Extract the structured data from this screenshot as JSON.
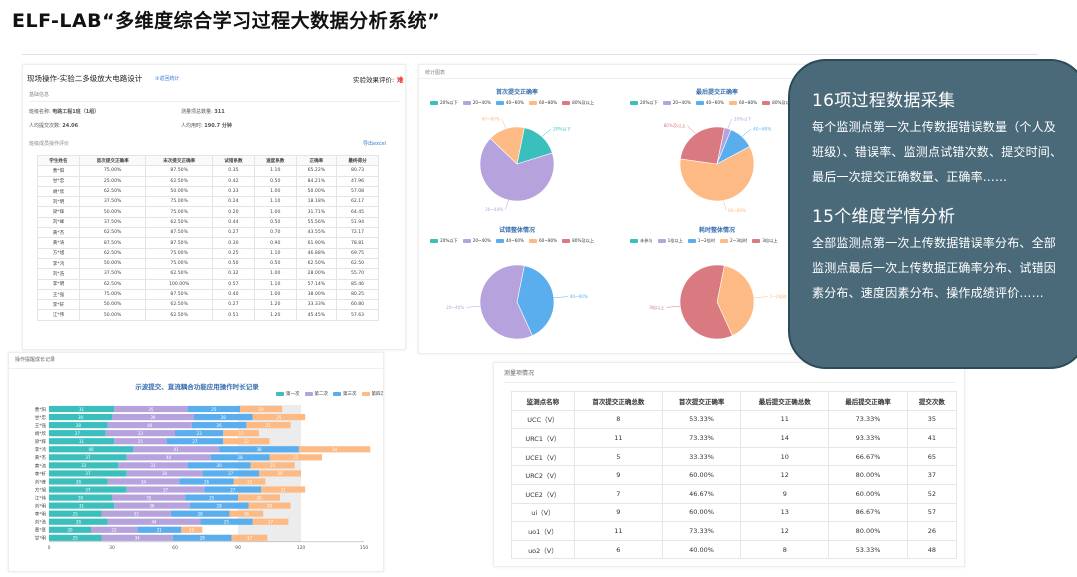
{
  "title": "ELF-LAB“多维度综合学习过程大数据分析系统”",
  "left_panel": {
    "header": "现场操作-实验二多级放大电路设计",
    "header_link": "③返回统计",
    "right_label": "实验效果评价:",
    "right_value": "难",
    "section_basic": "基础信息",
    "fields": [
      {
        "label": "班级名称:",
        "value": "电路工程1班（1组）"
      },
      {
        "label": "测量项总数量:",
        "value": "311"
      },
      {
        "label": "人均提交次数:",
        "value": "24.06"
      },
      {
        "label": "人均用时:",
        "value": "190.7 分钟"
      }
    ],
    "section_eval": "班级成员操作评价",
    "export": "导出excel",
    "columns": [
      "学生姓名",
      "首次提交正确率",
      "末次提交正确率",
      "试错系数",
      "速度系数",
      "正确率",
      "最终得分"
    ],
    "rows": [
      [
        "曹*阳",
        "75.00%",
        "87.50%",
        "0.35",
        "1.10",
        "65.22%",
        "80.73"
      ],
      [
        "甘*忠",
        "25.00%",
        "62.50%",
        "0.42",
        "0.50",
        "84.21%",
        "47.96"
      ],
      [
        "胡*欣",
        "62.50%",
        "50.00%",
        "0.33",
        "1.00",
        "50.00%",
        "57.08"
      ],
      [
        "刘*明",
        "37.50%",
        "75.00%",
        "0.24",
        "1.10",
        "18.18%",
        "62.17"
      ],
      [
        "梁*辉",
        "50.00%",
        "75.00%",
        "0.20",
        "1.00",
        "31.71%",
        "64.45"
      ],
      [
        "刘*峰",
        "37.50%",
        "62.50%",
        "0.44",
        "0.50",
        "55.56%",
        "51.94"
      ],
      [
        "黄*杰",
        "62.50%",
        "87.50%",
        "0.27",
        "0.70",
        "43.55%",
        "72.17"
      ],
      [
        "黄*涛",
        "87.50%",
        "87.50%",
        "0.30",
        "0.90",
        "61.90%",
        "78.81"
      ],
      [
        "方*旭",
        "62.50%",
        "75.00%",
        "0.25",
        "1.10",
        "46.88%",
        "69.75"
      ],
      [
        "李*鸿",
        "50.00%",
        "75.00%",
        "0.50",
        "0.50",
        "62.50%",
        "62.50"
      ],
      [
        "刘*浩",
        "37.50%",
        "62.50%",
        "0.32",
        "1.00",
        "28.00%",
        "55.70"
      ],
      [
        "李*明",
        "62.50%",
        "100.00%",
        "0.57",
        "1.10",
        "57.14%",
        "85.46"
      ],
      [
        "王*强",
        "75.00%",
        "87.50%",
        "0.40",
        "1.00",
        "38.00%",
        "80.25"
      ],
      [
        "李*轩",
        "50.00%",
        "62.50%",
        "0.27",
        "1.20",
        "33.33%",
        "60.80"
      ],
      [
        "江*伟",
        "50.00%",
        "62.50%",
        "0.51",
        "1.20",
        "45.45%",
        "57.63"
      ]
    ]
  },
  "pies_panel": {
    "header": "统计图表",
    "pies": [
      {
        "title": "首次提交正确率",
        "legend": [
          "20%以下",
          "20~40%",
          "40~60%",
          "60~80%",
          "80%及以上"
        ],
        "slices": [
          {
            "label": "20%以下",
            "value": 17
          },
          {
            "label": "20~40%",
            "value": 67
          },
          {
            "label": "40~60%",
            "value": 0
          },
          {
            "label": "60~80%",
            "value": 16
          }
        ],
        "labels": [
          "20%以下",
          "20~40%",
          "40~60%",
          "60~80%"
        ]
      },
      {
        "title": "最后提交正确率",
        "legend": [
          "20%以下",
          "20~40%",
          "40~60%",
          "60~80%",
          "80%及以上"
        ],
        "slices": [
          {
            "label": "20%以下",
            "value": 3
          },
          {
            "label": "40~60%",
            "value": 11
          },
          {
            "label": "60~80%",
            "value": 60
          },
          {
            "label": "80%及以上",
            "value": 26
          }
        ],
        "labels": [
          "20%以下",
          "40~60%",
          "60~80%",
          "80%及以上"
        ]
      },
      {
        "title": "试错整体情况",
        "legend": [
          "20%以下",
          "20~40%",
          "40~60%",
          "60~80%",
          "80%及以上"
        ],
        "slices": [
          {
            "label": "40~60%",
            "value": 40
          },
          {
            "label": "20~40%",
            "value": 60
          }
        ],
        "labels": [
          "40~60%",
          "20~40%"
        ]
      },
      {
        "title": "耗时整体情况",
        "legend": [
          "未参与",
          "1倍以上",
          "1~2倍时",
          "2~3倍时",
          "3倍以上"
        ],
        "slices": [
          {
            "label": "1~2倍时",
            "value": 40
          },
          {
            "label": "3倍以上",
            "value": 60
          }
        ],
        "labels": [
          "1~2倍时",
          "3倍以上"
        ]
      }
    ]
  },
  "bar_panel": {
    "header": "操作提醒成长记录",
    "chart_title": "示波提交、直流耦合功能应用操作时长记录",
    "legend": [
      "第一次",
      "第二次",
      "第三次",
      "第四次"
    ],
    "xticks": [
      "0",
      "30",
      "60",
      "90",
      "120",
      "150"
    ]
  },
  "measure_panel": {
    "header": "测量项情况",
    "columns": [
      "监测点名称",
      "首次提交正确总数",
      "首次提交正确率",
      "最后提交正确总数",
      "最后提交正确率",
      "提交次数"
    ],
    "rows": [
      [
        "UCC（V）",
        "8",
        "53.33%",
        "11",
        "73.33%",
        "35"
      ],
      [
        "URC1（V）",
        "11",
        "73.33%",
        "14",
        "93.33%",
        "41"
      ],
      [
        "UCE1（V）",
        "5",
        "33.33%",
        "10",
        "66.67%",
        "65"
      ],
      [
        "URC2（V）",
        "9",
        "60.00%",
        "12",
        "80.00%",
        "37"
      ],
      [
        "UCE2（V）",
        "7",
        "46.67%",
        "9",
        "60.00%",
        "52"
      ],
      [
        "ui（V）",
        "9",
        "60.00%",
        "13",
        "86.67%",
        "57"
      ],
      [
        "uo1（V）",
        "11",
        "73.33%",
        "12",
        "80.00%",
        "26"
      ],
      [
        "uo2（V）",
        "6",
        "40.00%",
        "8",
        "53.33%",
        "48"
      ]
    ]
  },
  "bubble": {
    "h1": "16项过程数据采集",
    "p1": "每个监测点第一次上传数据错误数量（个人及班级）、错误率、监测点试错次数、提交时间、最后一次提交正确数量、正确率……",
    "h2": "15个维度学情分析",
    "p2": "全部监测点第一次上传数据错误率分布、全部监测点最后一次上传数据正确率分布、试错因素分布、速度因素分布、操作成绩评价……"
  },
  "chart_data": [
    {
      "type": "pie",
      "title": "首次提交正确率",
      "series": [
        {
          "values": [
            17,
            67,
            0,
            16
          ]
        }
      ],
      "categories": [
        "20%以下",
        "20~40%",
        "40~60%",
        "60~80%"
      ]
    },
    {
      "type": "pie",
      "title": "最后提交正确率",
      "series": [
        {
          "values": [
            3,
            11,
            60,
            26
          ]
        }
      ],
      "categories": [
        "20%以下",
        "40~60%",
        "60~80%",
        "80%及以上"
      ]
    },
    {
      "type": "pie",
      "title": "试错整体情况",
      "series": [
        {
          "values": [
            40,
            60
          ]
        }
      ],
      "categories": [
        "40~60%",
        "20~40%"
      ]
    },
    {
      "type": "pie",
      "title": "耗时整体情况",
      "series": [
        {
          "values": [
            40,
            60
          ]
        }
      ],
      "categories": [
        "1~2倍时",
        "3倍以上"
      ]
    },
    {
      "type": "bar",
      "title": "示波提交、直流耦合功能应用操作时长记录",
      "categories": [
        "曹*阳",
        "甘*忠",
        "王*强",
        "胡*欣",
        "梁*辉",
        "李*鸿",
        "黄*杰",
        "黄*涛",
        "李*轩",
        "刘*峰",
        "方*旭",
        "江*伟",
        "刘*明",
        "李*明",
        "刘*浩",
        "曹*意",
        "甘*明"
      ],
      "series": [
        {
          "name": "第一次",
          "values": [
            31,
            30,
            28,
            27,
            31,
            40,
            37,
            33,
            37,
            28,
            37,
            30,
            31,
            25,
            28,
            20,
            25
          ]
        },
        {
          "name": "第二次",
          "values": [
            35,
            39,
            40,
            33,
            25,
            41,
            40,
            33,
            36,
            34,
            37,
            35,
            36,
            33,
            44,
            22,
            34
          ]
        },
        {
          "name": "第三次",
          "values": [
            25,
            28,
            26,
            23,
            27,
            38,
            28,
            30,
            27,
            26,
            27,
            25,
            28,
            28,
            25,
            21,
            28
          ]
        },
        {
          "name": "第四次",
          "values": [
            20,
            25,
            21,
            17,
            22,
            34,
            25,
            21,
            20,
            15,
            21,
            20,
            20,
            16,
            17,
            10,
            17
          ]
        }
      ],
      "xlim": [
        0,
        150
      ],
      "orientation": "horizontal",
      "stacked": true
    }
  ],
  "colors": {
    "teal": "#3bbfbd",
    "purple": "#b6a3de",
    "blue": "#5aaeee",
    "orange": "#fdba84",
    "red": "#d97a80",
    "bubble": "#4a6a7a"
  }
}
